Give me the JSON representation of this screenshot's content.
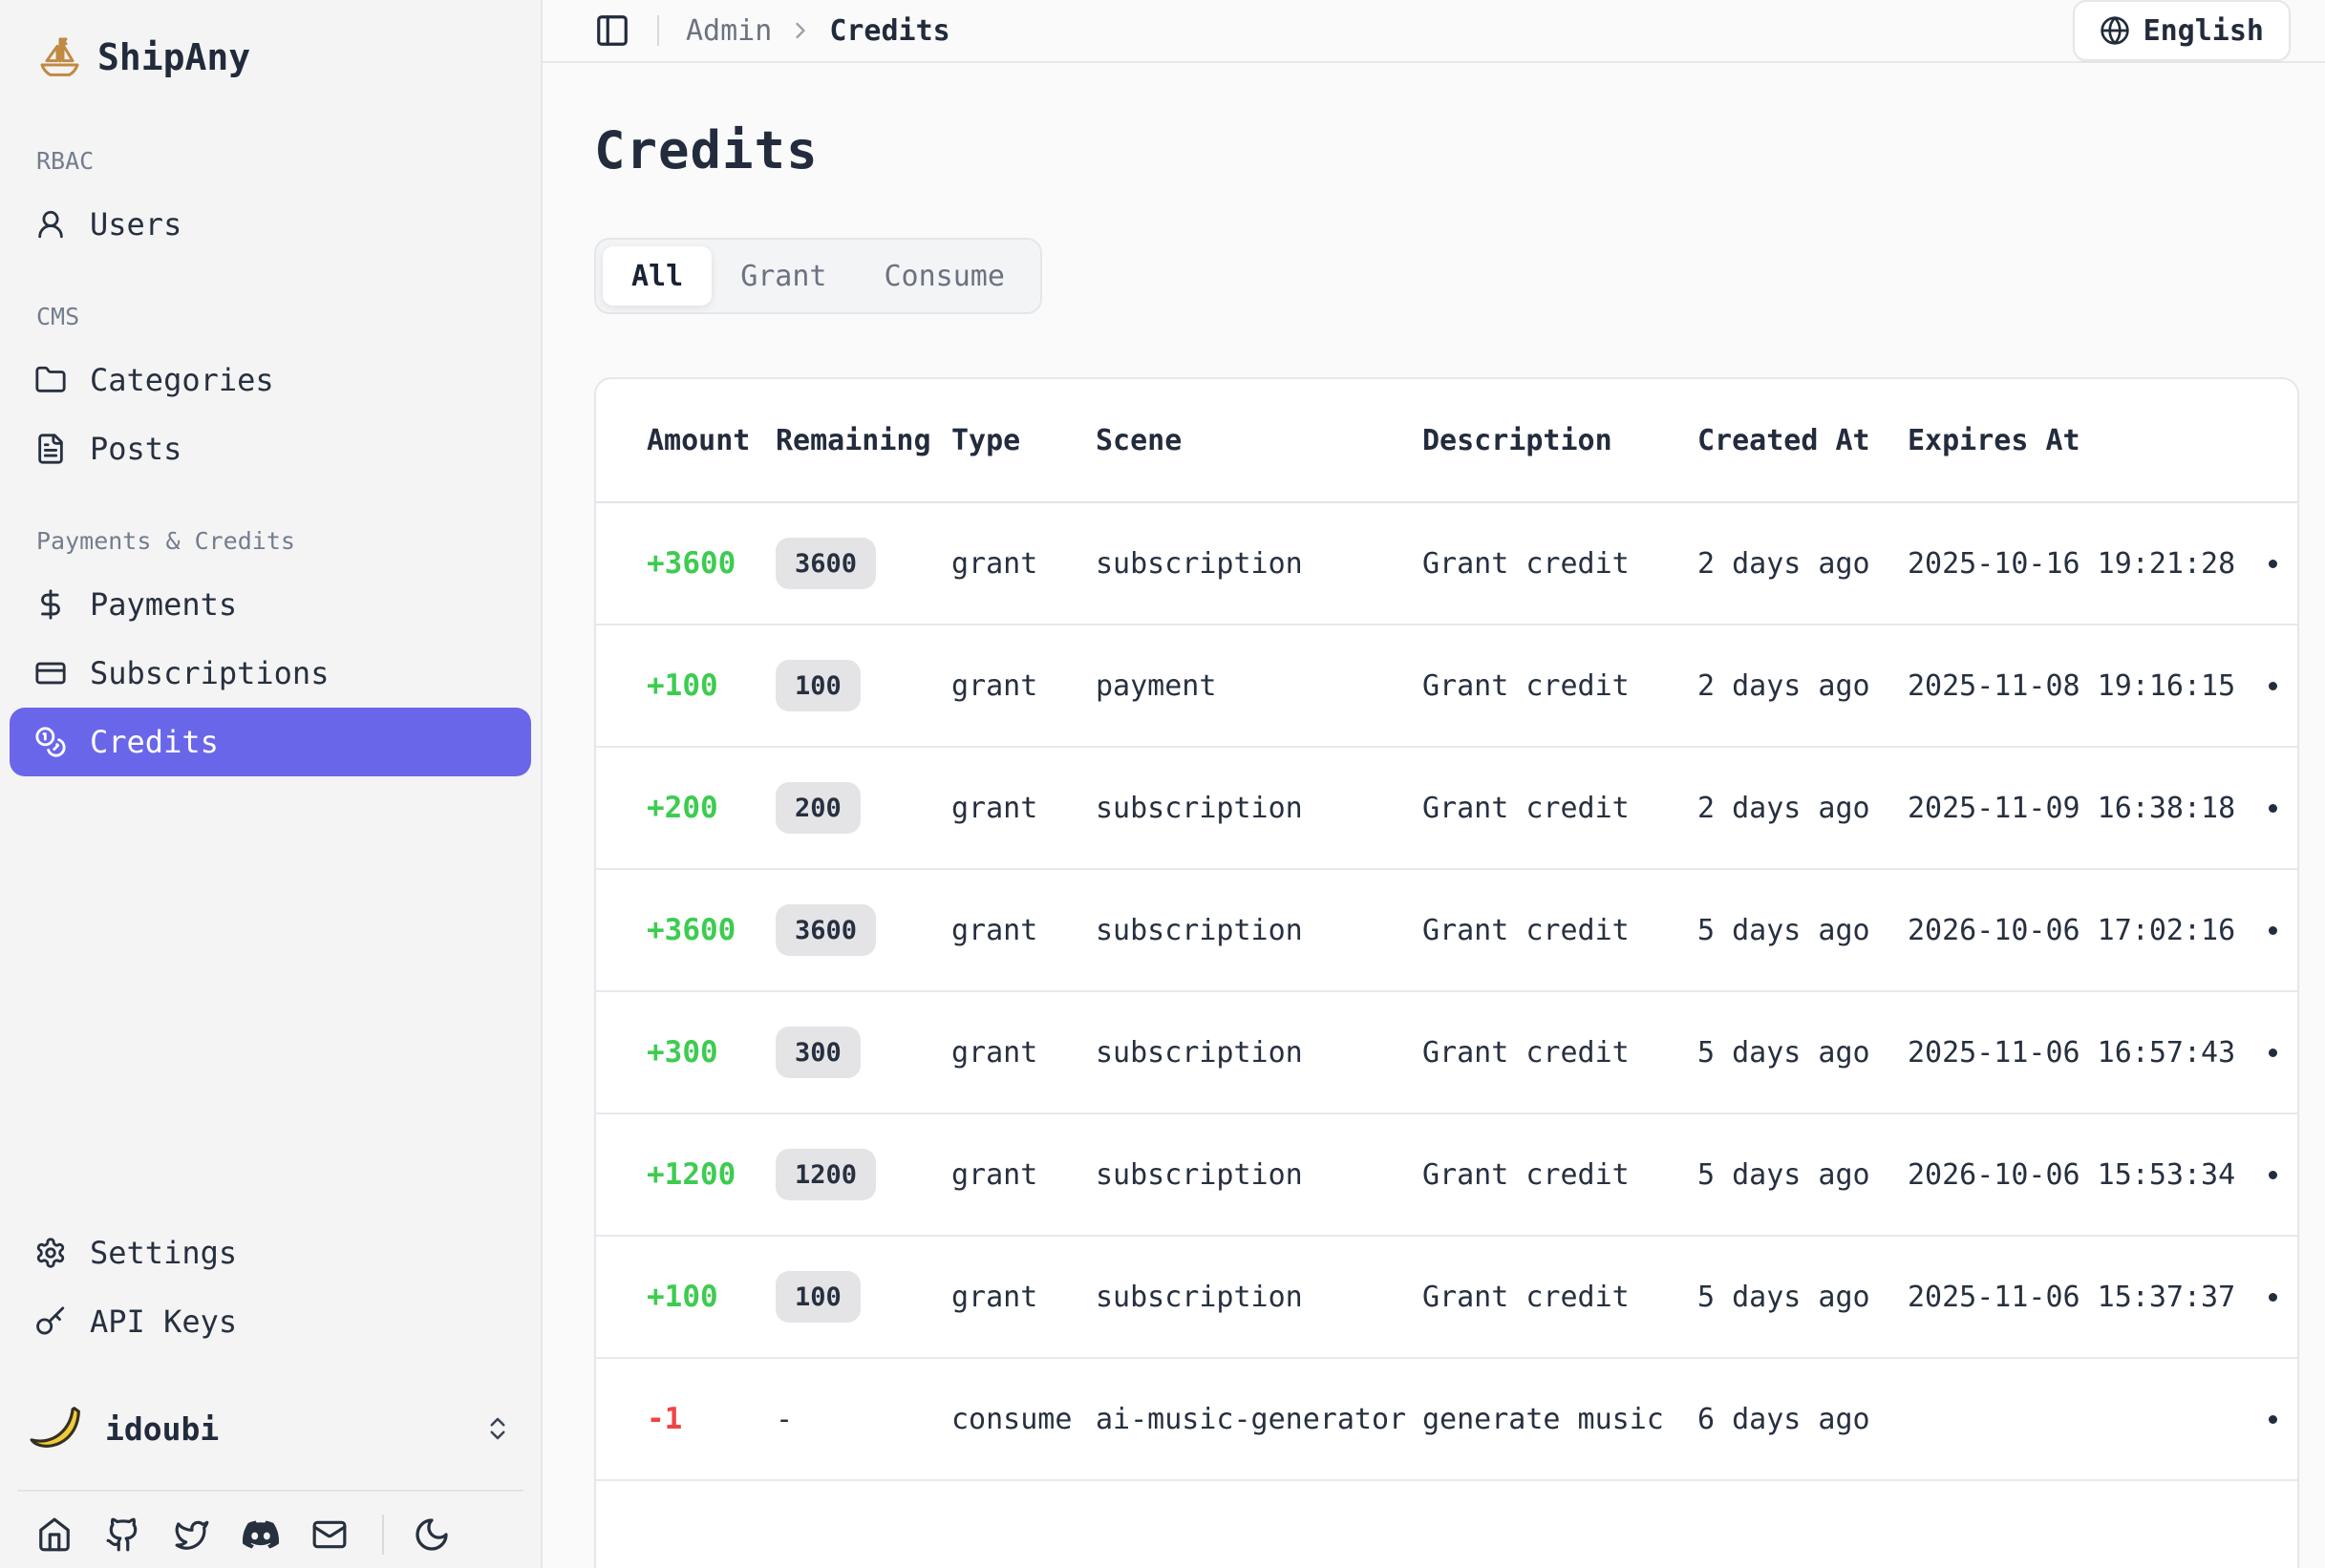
{
  "app": {
    "name": "ShipAny"
  },
  "sidebar": {
    "sections": [
      {
        "label": "RBAC",
        "items": [
          {
            "label": "Users",
            "icon": "user-icon",
            "active": false
          }
        ]
      },
      {
        "label": "CMS",
        "items": [
          {
            "label": "Categories",
            "icon": "folder-icon",
            "active": false
          },
          {
            "label": "Posts",
            "icon": "post-icon",
            "active": false
          }
        ]
      },
      {
        "label": "Payments & Credits",
        "items": [
          {
            "label": "Payments",
            "icon": "dollar-icon",
            "active": false
          },
          {
            "label": "Subscriptions",
            "icon": "credit-card-icon",
            "active": false
          },
          {
            "label": "Credits",
            "icon": "coins-icon",
            "active": true
          }
        ]
      }
    ],
    "footer_items": [
      {
        "label": "Settings",
        "icon": "gear-icon"
      },
      {
        "label": "API Keys",
        "icon": "key-icon"
      }
    ],
    "user": {
      "name": "idoubi",
      "avatar": "banana-avatar"
    },
    "social_icons": [
      "home-icon",
      "github-icon",
      "twitter-icon",
      "discord-icon",
      "mail-icon"
    ],
    "theme_icon": "moon-icon"
  },
  "header": {
    "breadcrumb_parent": "Admin",
    "breadcrumb_current": "Credits",
    "language": "English"
  },
  "page": {
    "title": "Credits",
    "tabs": [
      {
        "label": "All",
        "active": true
      },
      {
        "label": "Grant",
        "active": false
      },
      {
        "label": "Consume",
        "active": false
      }
    ]
  },
  "table": {
    "columns": [
      "Amount",
      "Remaining",
      "Type",
      "Scene",
      "Description",
      "Created At",
      "Expires At"
    ],
    "rows": [
      {
        "amount": "+3600",
        "positive": true,
        "remaining": "3600",
        "badge": true,
        "type": "grant",
        "scene": "subscription",
        "description": "Grant credit",
        "created_at": "2 days ago",
        "expires_at": "2025-10-16 19:21:28"
      },
      {
        "amount": "+100",
        "positive": true,
        "remaining": "100",
        "badge": true,
        "type": "grant",
        "scene": "payment",
        "description": "Grant credit",
        "created_at": "2 days ago",
        "expires_at": "2025-11-08 19:16:15"
      },
      {
        "amount": "+200",
        "positive": true,
        "remaining": "200",
        "badge": true,
        "type": "grant",
        "scene": "subscription",
        "description": "Grant credit",
        "created_at": "2 days ago",
        "expires_at": "2025-11-09 16:38:18"
      },
      {
        "amount": "+3600",
        "positive": true,
        "remaining": "3600",
        "badge": true,
        "type": "grant",
        "scene": "subscription",
        "description": "Grant credit",
        "created_at": "5 days ago",
        "expires_at": "2026-10-06 17:02:16"
      },
      {
        "amount": "+300",
        "positive": true,
        "remaining": "300",
        "badge": true,
        "type": "grant",
        "scene": "subscription",
        "description": "Grant credit",
        "created_at": "5 days ago",
        "expires_at": "2025-11-06 16:57:43"
      },
      {
        "amount": "+1200",
        "positive": true,
        "remaining": "1200",
        "badge": true,
        "type": "grant",
        "scene": "subscription",
        "description": "Grant credit",
        "created_at": "5 days ago",
        "expires_at": "2026-10-06 15:53:34"
      },
      {
        "amount": "+100",
        "positive": true,
        "remaining": "100",
        "badge": true,
        "type": "grant",
        "scene": "subscription",
        "description": "Grant credit",
        "created_at": "5 days ago",
        "expires_at": "2025-11-06 15:37:37"
      },
      {
        "amount": "-1",
        "positive": false,
        "remaining": "-",
        "badge": false,
        "type": "consume",
        "scene": "ai-music-generator",
        "description": "generate music",
        "created_at": "6 days ago",
        "expires_at": ""
      }
    ]
  },
  "colors": {
    "accent": "#6a66ea",
    "positive": "#3dcc50",
    "negative": "#ef4444",
    "badge_bg": "#e4e4e7"
  }
}
